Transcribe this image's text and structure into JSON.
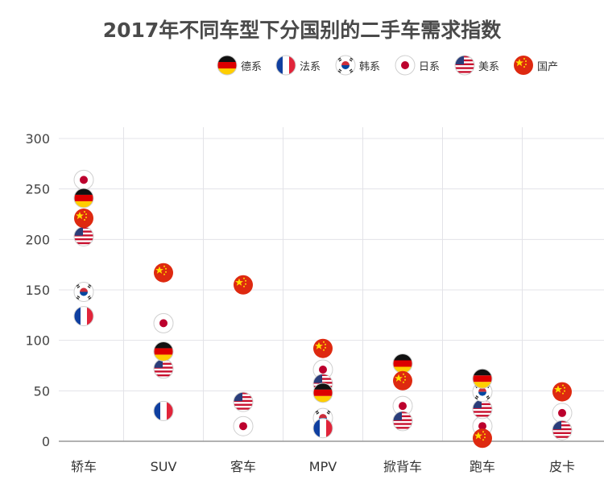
{
  "chart_data": {
    "type": "scatter",
    "title": "2017年不同车型下分国别的二手车需求指数",
    "categories": [
      "轿车",
      "SUV",
      "客车",
      "MPV",
      "掀背车",
      "跑车",
      "皮卡"
    ],
    "ylim": [
      0,
      300
    ],
    "yticks": [
      0,
      50,
      100,
      150,
      200,
      250,
      300
    ],
    "grid": true,
    "legend_position": "top-right",
    "series": [
      {
        "key": "de",
        "name": "德系",
        "values": [
          241,
          89,
          null,
          48,
          77,
          62,
          null
        ]
      },
      {
        "key": "fr",
        "name": "法系",
        "values": [
          124,
          30,
          null,
          13,
          null,
          null,
          null
        ]
      },
      {
        "key": "kr",
        "name": "韩系",
        "values": [
          148,
          null,
          null,
          23,
          null,
          49,
          null
        ]
      },
      {
        "key": "jp",
        "name": "日系",
        "values": [
          259,
          117,
          15,
          71,
          35,
          15,
          28
        ]
      },
      {
        "key": "us",
        "name": "美系",
        "values": [
          203,
          72,
          39,
          57,
          20,
          32,
          11
        ]
      },
      {
        "key": "cn",
        "name": "国产",
        "values": [
          221,
          167,
          155,
          92,
          60,
          3,
          49
        ]
      }
    ]
  },
  "colors": {
    "grid": "#e3e3e8",
    "axis": "#999999",
    "title": "#4a4a4a",
    "de_black": "#111111",
    "de_red": "#dd0000",
    "de_gold": "#ffce00",
    "fr_blue": "#0f3fa0",
    "fr_red": "#e1243a",
    "kr_red": "#cd2e3a",
    "kr_blue": "#0047a0",
    "jp_red": "#bc002d",
    "us_red": "#c8102e",
    "us_blue": "#2a3d7a",
    "cn_red": "#de2910",
    "cn_star": "#ffde00"
  },
  "icons": {
    "de": "germany-flag-icon",
    "fr": "france-flag-icon",
    "kr": "korea-flag-icon",
    "jp": "japan-flag-icon",
    "us": "usa-flag-icon",
    "cn": "china-flag-icon"
  }
}
